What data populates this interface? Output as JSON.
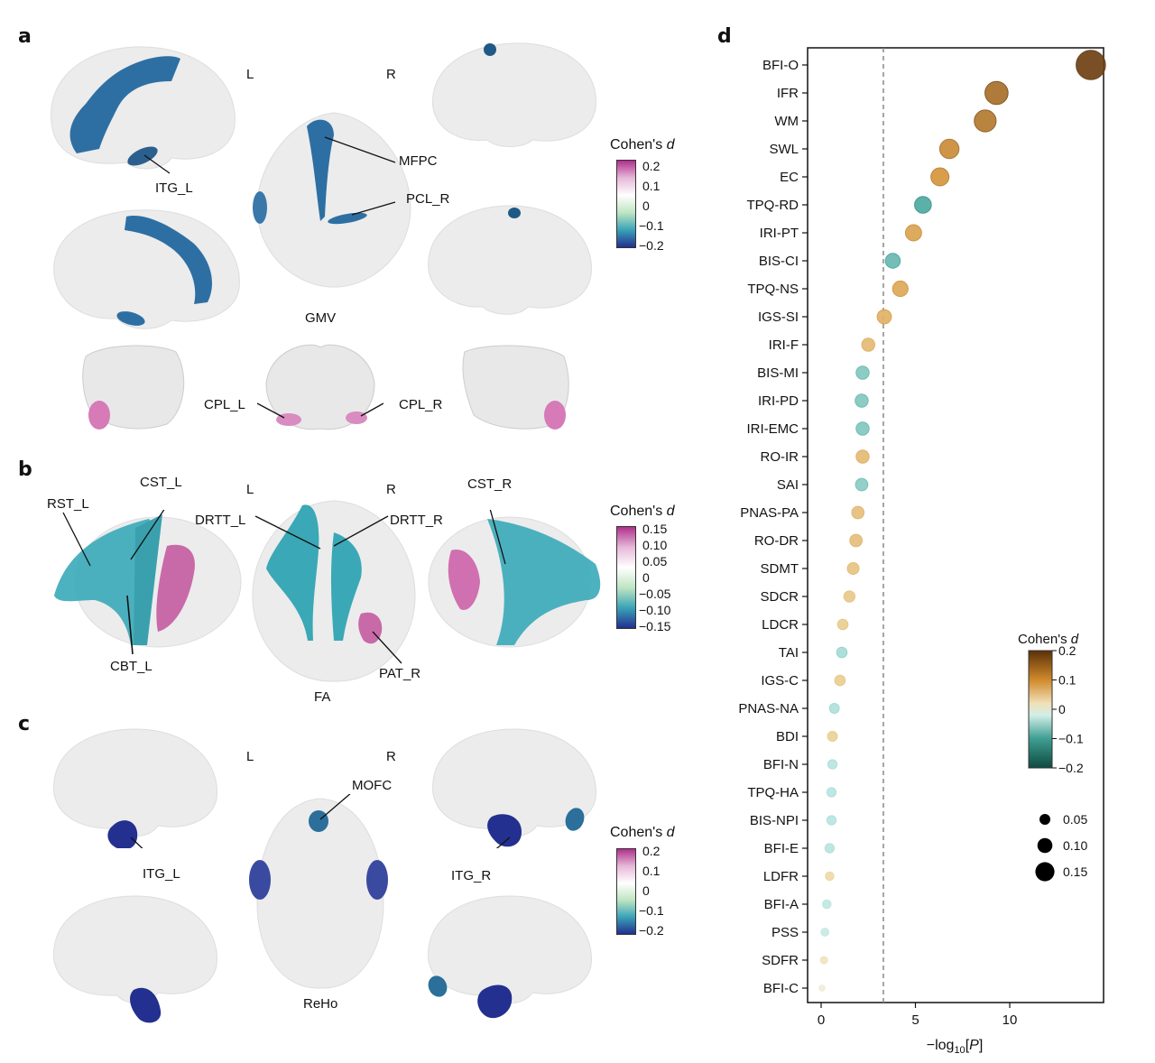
{
  "panels": {
    "a": {
      "letter": "a",
      "hemi_left": "L",
      "hemi_right": "R",
      "modality": "GMV",
      "regions": [
        "ITG_L",
        "MFPC",
        "PCL_R",
        "CPL_L",
        "CPL_R"
      ],
      "colorbar": {
        "title": "Cohen's ",
        "title_italic": "d",
        "ticks": [
          "0.2",
          "0.1",
          "0",
          "−0.1",
          "−0.2"
        ]
      }
    },
    "b": {
      "letter": "b",
      "hemi_left": "L",
      "hemi_right": "R",
      "modality": "FA",
      "regions": [
        "RST_L",
        "CST_L",
        "DRTT_L",
        "DRTT_R",
        "CST_R",
        "CBT_L",
        "PAT_R"
      ],
      "colorbar": {
        "title": "Cohen's ",
        "title_italic": "d",
        "ticks": [
          "0.15",
          "0.10",
          "0.05",
          "0",
          "−0.05",
          "−0.10",
          "−0.15"
        ]
      }
    },
    "c": {
      "letter": "c",
      "hemi_left": "L",
      "hemi_right": "R",
      "modality": "ReHo",
      "regions": [
        "MOFC",
        "ITG_L",
        "ITG_R"
      ],
      "colorbar": {
        "title": "Cohen's ",
        "title_italic": "d",
        "ticks": [
          "0.2",
          "0.1",
          "0",
          "−0.1",
          "−0.2"
        ]
      }
    },
    "d": {
      "letter": "d"
    }
  },
  "colors": {
    "brain_blue": "#2e6fa3",
    "brain_navy": "#23308f",
    "tract_cyan": "#3aaab8",
    "brain_pink": "#d67ab8",
    "brain_shell": "#ececec"
  },
  "chart_data": {
    "type": "scatter",
    "title": "",
    "xlabel": "−log10[P]",
    "xlabel_main": "−log",
    "xlabel_sub": "10",
    "xlabel_bracket": "[P]",
    "ylabel": "",
    "xlim": [
      -0.7,
      14.8
    ],
    "xticks": [
      0,
      5,
      10
    ],
    "threshold_line": 3.3,
    "grid": false,
    "size_legend": {
      "title": "",
      "values": [
        0.05,
        0.1,
        0.15
      ],
      "labels": [
        "0.05",
        "0.10",
        "0.15"
      ],
      "placement": "right"
    },
    "color_legend": {
      "title": "Cohen's d",
      "range": [
        -0.2,
        0.2
      ],
      "ticks": [
        "0.2",
        "0.1",
        "0",
        "−0.1",
        "−0.2"
      ],
      "placement": "right"
    },
    "categories": [
      "BFI-O",
      "IFR",
      "WM",
      "SWL",
      "EC",
      "TPQ-RD",
      "IRI-PT",
      "BIS-CI",
      "TPQ-NS",
      "IGS-SI",
      "IRI-F",
      "BIS-MI",
      "IRI-PD",
      "IRI-EMC",
      "RO-IR",
      "SAI",
      "PNAS-PA",
      "RO-DR",
      "SDMT",
      "SDCR",
      "LDCR",
      "TAI",
      "IGS-C",
      "PNAS-NA",
      "BDI",
      "BFI-N",
      "TPQ-HA",
      "BIS-NPI",
      "BFI-E",
      "LDFR",
      "BFI-A",
      "PSS",
      "SDFR",
      "BFI-C"
    ],
    "neglog10p": [
      14.3,
      9.3,
      8.7,
      6.8,
      6.3,
      5.4,
      4.9,
      3.8,
      4.2,
      3.35,
      2.5,
      2.2,
      2.15,
      2.2,
      2.2,
      2.15,
      1.95,
      1.85,
      1.7,
      1.5,
      1.15,
      1.1,
      1.0,
      0.7,
      0.6,
      0.6,
      0.55,
      0.55,
      0.45,
      0.45,
      0.3,
      0.2,
      0.15,
      0.05
    ],
    "cohens_d": [
      0.19,
      0.14,
      0.13,
      0.11,
      0.1,
      -0.09,
      0.085,
      -0.075,
      0.08,
      0.07,
      0.06,
      -0.06,
      -0.06,
      -0.06,
      0.06,
      -0.055,
      0.055,
      0.055,
      0.05,
      0.045,
      0.04,
      -0.04,
      0.04,
      -0.035,
      0.035,
      -0.03,
      -0.03,
      -0.03,
      -0.03,
      0.025,
      -0.025,
      -0.02,
      0.015,
      0.005
    ]
  }
}
